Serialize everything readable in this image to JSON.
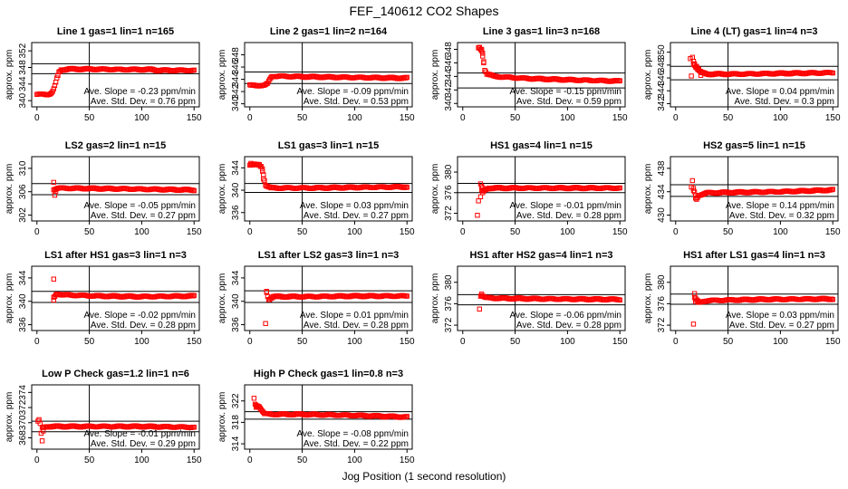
{
  "title": "FEF_140612  CO2 Shapes",
  "xlabel": "Jog Position (1 second resolution)",
  "point_color": "#ff0000",
  "chart_data": [
    {
      "type": "scatter",
      "title": "Line 1 gas=1 lin=1 n=165",
      "ylabel": "approx. ppm",
      "xlim": [
        -5,
        155
      ],
      "ylim": [
        338.5,
        354
      ],
      "yticks": [
        340,
        344,
        348,
        352
      ],
      "xticks": [
        0,
        50,
        100,
        150
      ],
      "hlines": [
        348.9,
        346.5
      ],
      "vline": 50,
      "slope": "Ave. Slope = -0.23 ppm/min",
      "stddev": "Ave. Std. Dev. = 0.76 ppm",
      "segments": [
        [
          0,
          341.5
        ],
        [
          10,
          341.5
        ],
        [
          13,
          341.7
        ],
        [
          15,
          342.2
        ],
        [
          17,
          343.5
        ],
        [
          19,
          345.3
        ],
        [
          21,
          346.8
        ],
        [
          23,
          347.4
        ],
        [
          30,
          347.6
        ],
        [
          50,
          347.6
        ],
        [
          80,
          347.5
        ],
        [
          110,
          347.5
        ],
        [
          115,
          347.3
        ],
        [
          150,
          347.3
        ]
      ]
    },
    {
      "type": "scatter",
      "title": "Line 2 gas=1 lin=2 n=164",
      "ylabel": "approx. ppm",
      "xlim": [
        -5,
        155
      ],
      "ylim": [
        339.5,
        350
      ],
      "yticks": [
        340,
        342,
        344,
        346,
        348
      ],
      "xticks": [
        0,
        50,
        100,
        150
      ],
      "hlines": [
        345.2,
        343.3
      ],
      "vline": 50,
      "slope": "Ave. Slope = -0.09 ppm/min",
      "stddev": "Ave. Std. Dev. = 0.53 ppm",
      "segments": [
        [
          0,
          343.0
        ],
        [
          14,
          343.0
        ],
        [
          17,
          343.3
        ],
        [
          19,
          344.0
        ],
        [
          21,
          344.5
        ],
        [
          30,
          344.5
        ],
        [
          60,
          344.4
        ],
        [
          100,
          344.3
        ],
        [
          150,
          344.2
        ]
      ]
    },
    {
      "type": "scatter",
      "title": "Line 3 gas=1 lin=3 n=168",
      "ylabel": "approx. ppm",
      "xlim": [
        -5,
        155
      ],
      "ylim": [
        339.5,
        349
      ],
      "yticks": [
        340,
        342,
        344,
        346,
        348
      ],
      "xticks": [
        0,
        50,
        100,
        150
      ],
      "hlines": [
        344.5,
        342.3
      ],
      "vline": 50,
      "slope": "Ave. Slope = -0.15 ppm/min",
      "stddev": "Ave. Std. Dev. = 0.59 ppm",
      "segments": [
        [
          15,
          348.2
        ],
        [
          17,
          348.0
        ],
        [
          19,
          347.5
        ],
        [
          20,
          346.2
        ],
        [
          21,
          345.0
        ],
        [
          23,
          344.4
        ],
        [
          30,
          344.0
        ],
        [
          60,
          343.7
        ],
        [
          100,
          343.5
        ],
        [
          150,
          343.3
        ]
      ],
      "extra": [
        [
          16,
          348.3
        ],
        [
          18,
          348.0
        ],
        [
          19,
          347.0
        ],
        [
          20,
          346.0
        ]
      ]
    },
    {
      "type": "scatter",
      "title": "Line 4 (LT) gas=1 lin=4 n=3",
      "ylabel": "approx. ppm",
      "xlim": [
        -5,
        155
      ],
      "ylim": [
        341.5,
        351.5
      ],
      "yticks": [
        342,
        344,
        346,
        348,
        350
      ],
      "xticks": [
        0,
        50,
        100,
        150
      ],
      "hlines": [
        347.8,
        345.7
      ],
      "vline": 50,
      "slope": "Ave. Slope = 0.04 ppm/min",
      "stddev": "Ave. Std. Dev. = 0.3 ppm",
      "segments": [
        [
          17,
          348.2
        ],
        [
          19,
          347.8
        ],
        [
          22,
          347.2
        ],
        [
          25,
          346.8
        ],
        [
          30,
          346.6
        ],
        [
          60,
          346.6
        ],
        [
          100,
          346.7
        ],
        [
          150,
          346.8
        ]
      ],
      "extra": [
        [
          14,
          349.0
        ],
        [
          15,
          346.3
        ],
        [
          16,
          349.2
        ],
        [
          17,
          348.6
        ],
        [
          18,
          348.2
        ],
        [
          20,
          347.8
        ],
        [
          22,
          347.4
        ],
        [
          24,
          346.4
        ]
      ]
    },
    {
      "type": "scatter",
      "title": "LS2 gas=2 lin=1 n=15",
      "ylabel": "approx. ppm",
      "xlim": [
        -5,
        155
      ],
      "ylim": [
        301,
        312
      ],
      "yticks": [
        302,
        306,
        310
      ],
      "xticks": [
        0,
        50,
        100,
        150
      ],
      "hlines": [
        307.4,
        305.5
      ],
      "vline": 50,
      "slope": "Ave. Slope = -0.05 ppm/min",
      "stddev": "Ave. Std. Dev. = 0.27 ppm",
      "segments": [
        [
          16,
          306.4
        ],
        [
          20,
          306.6
        ],
        [
          30,
          306.6
        ],
        [
          80,
          306.5
        ],
        [
          150,
          306.3
        ]
      ],
      "extra": [
        [
          16,
          307.6
        ],
        [
          17,
          305.4
        ],
        [
          18,
          306.1
        ]
      ]
    },
    {
      "type": "scatter",
      "title": "LS1 gas=3 lin=1 n=15",
      "ylabel": "approx. ppm",
      "xlim": [
        -5,
        155
      ],
      "ylim": [
        334.5,
        346
      ],
      "yticks": [
        336,
        340,
        344
      ],
      "xticks": [
        0,
        50,
        100,
        150
      ],
      "hlines": [
        341.2,
        339.6
      ],
      "vline": 50,
      "slope": "Ave. Slope = 0.03 ppm/min",
      "stddev": "Ave. Std. Dev. = 0.27 ppm",
      "segments": [
        [
          0,
          344.6
        ],
        [
          8,
          344.5
        ],
        [
          11,
          344.2
        ],
        [
          13,
          342.8
        ],
        [
          15,
          340.9
        ],
        [
          20,
          340.4
        ],
        [
          60,
          340.4
        ],
        [
          100,
          340.5
        ],
        [
          150,
          340.6
        ]
      ],
      "extra": [
        [
          1,
          344.8
        ],
        [
          4,
          344.7
        ],
        [
          9,
          344.6
        ],
        [
          12,
          343.8
        ],
        [
          13,
          342.0
        ]
      ]
    },
    {
      "type": "scatter",
      "title": "HS1 gas=4 lin=1 n=15",
      "ylabel": "approx. ppm",
      "xlim": [
        -5,
        155
      ],
      "ylim": [
        370.5,
        383
      ],
      "yticks": [
        372,
        376,
        380
      ],
      "xticks": [
        0,
        50,
        100,
        150
      ],
      "hlines": [
        377.8,
        376.0
      ],
      "vline": 50,
      "slope": "Ave. Slope = -0.01 ppm/min",
      "stddev": "Ave. Std. Dev. = 0.28 ppm",
      "segments": [
        [
          17,
          377.6
        ],
        [
          20,
          376.4
        ],
        [
          25,
          376.9
        ],
        [
          60,
          376.9
        ],
        [
          100,
          376.9
        ],
        [
          150,
          376.9
        ]
      ],
      "extra": [
        [
          14,
          371.6
        ],
        [
          15,
          374.4
        ],
        [
          17,
          375.2
        ],
        [
          18,
          376.5
        ],
        [
          19,
          376.0
        ],
        [
          20,
          376.3
        ]
      ]
    },
    {
      "type": "scatter",
      "title": "HS2 gas=5 lin=1 n=15",
      "ylabel": "approx. ppm",
      "xlim": [
        -5,
        155
      ],
      "ylim": [
        429,
        440
      ],
      "yticks": [
        430,
        434,
        438
      ],
      "xticks": [
        0,
        50,
        100,
        150
      ],
      "hlines": [
        435.2,
        433.2
      ],
      "vline": 50,
      "slope": "Ave. Slope = 0.14 ppm/min",
      "stddev": "Ave. Std. Dev. = 0.32 ppm",
      "segments": [
        [
          17,
          434.5
        ],
        [
          20,
          432.7
        ],
        [
          22,
          433.4
        ],
        [
          30,
          433.8
        ],
        [
          60,
          433.9
        ],
        [
          100,
          434.0
        ],
        [
          150,
          434.3
        ]
      ],
      "extra": [
        [
          15,
          434.8
        ],
        [
          16,
          435.9
        ],
        [
          17,
          434.2
        ],
        [
          19,
          432.9
        ]
      ]
    },
    {
      "type": "scatter",
      "title": "LS1 after HS1 gas=3 lin=1 n=3",
      "ylabel": "approx. ppm",
      "xlim": [
        -5,
        155
      ],
      "ylim": [
        335,
        346
      ],
      "yticks": [
        336,
        340,
        344
      ],
      "xticks": [
        0,
        50,
        100,
        150
      ],
      "hlines": [
        341.7,
        339.8
      ],
      "vline": 50,
      "slope": "Ave. Slope = -0.02 ppm/min",
      "stddev": "Ave. Std. Dev. = 0.28 ppm",
      "segments": [
        [
          16,
          340.6
        ],
        [
          19,
          341.3
        ],
        [
          25,
          341.1
        ],
        [
          60,
          340.9
        ],
        [
          100,
          340.8
        ],
        [
          150,
          340.9
        ]
      ],
      "extra": [
        [
          16,
          343.8
        ],
        [
          16,
          340.2
        ]
      ]
    },
    {
      "type": "scatter",
      "title": "LS1 after LS2 gas=3 lin=1 n=3",
      "ylabel": "approx. ppm",
      "xlim": [
        -5,
        155
      ],
      "ylim": [
        335,
        346
      ],
      "yticks": [
        336,
        340,
        344
      ],
      "xticks": [
        0,
        50,
        100,
        150
      ],
      "hlines": [
        341.8,
        339.8
      ],
      "vline": 50,
      "slope": "Ave. Slope = 0.01 ppm/min",
      "stddev": "Ave. Std. Dev. = 0.28 ppm",
      "segments": [
        [
          16,
          341.5
        ],
        [
          18,
          340.3
        ],
        [
          22,
          340.8
        ],
        [
          60,
          340.8
        ],
        [
          100,
          340.9
        ],
        [
          150,
          340.9
        ]
      ],
      "extra": [
        [
          15,
          336.2
        ],
        [
          16,
          341.7
        ]
      ]
    },
    {
      "type": "scatter",
      "title": "HS1 after HS2 gas=4 lin=1 n=3",
      "ylabel": "approx. ppm",
      "xlim": [
        -5,
        155
      ],
      "ylim": [
        371,
        383
      ],
      "yticks": [
        372,
        376,
        380
      ],
      "xticks": [
        0,
        50,
        100,
        150
      ],
      "hlines": [
        377.7,
        375.8
      ],
      "vline": 50,
      "slope": "Ave. Slope = -0.06 ppm/min",
      "stddev": "Ave. Std. Dev. = 0.28 ppm",
      "segments": [
        [
          18,
          377.6
        ],
        [
          22,
          377.1
        ],
        [
          40,
          377.0
        ],
        [
          80,
          376.9
        ],
        [
          150,
          376.8
        ]
      ],
      "extra": [
        [
          16,
          375.0
        ],
        [
          17,
          377.4
        ],
        [
          18,
          377.8
        ]
      ]
    },
    {
      "type": "scatter",
      "title": "HS1 after LS1 gas=4 lin=1 n=3",
      "ylabel": "approx. ppm",
      "xlim": [
        -5,
        155
      ],
      "ylim": [
        371,
        383
      ],
      "yticks": [
        372,
        376,
        380
      ],
      "xticks": [
        0,
        50,
        100,
        150
      ],
      "hlines": [
        377.8,
        375.9
      ],
      "vline": 50,
      "slope": "Ave. Slope = 0.03 ppm/min",
      "stddev": "Ave. Std. Dev. = 0.27 ppm",
      "segments": [
        [
          18,
          377.2
        ],
        [
          22,
          376.2
        ],
        [
          30,
          376.6
        ],
        [
          80,
          376.8
        ],
        [
          150,
          376.9
        ]
      ],
      "extra": [
        [
          17,
          372.2
        ],
        [
          18,
          377.9
        ],
        [
          19,
          376.4
        ]
      ]
    },
    {
      "type": "scatter",
      "title": "Low P Check gas=1.2 lin=1 n=6",
      "ylabel": "approx. ppm",
      "xlim": [
        -5,
        155
      ],
      "ylim": [
        366.5,
        375
      ],
      "yticks": [
        368,
        370,
        372,
        374
      ],
      "xticks": [
        0,
        50,
        100,
        150
      ],
      "hlines": [
        370.2,
        368.8
      ],
      "vline": 50,
      "slope": "Ave. Slope = -0.01 ppm/min",
      "stddev": "Ave. Std. Dev. = 0.29 ppm",
      "segments": [
        [
          5,
          369.3
        ],
        [
          10,
          369.5
        ],
        [
          50,
          369.5
        ],
        [
          100,
          369.5
        ],
        [
          150,
          369.4
        ]
      ],
      "extra": [
        [
          1,
          370.2
        ],
        [
          2,
          370.4
        ],
        [
          3,
          369.9
        ],
        [
          4,
          368.6
        ],
        [
          5,
          367.6
        ],
        [
          6,
          368.9
        ]
      ]
    },
    {
      "type": "scatter",
      "title": "High P Check gas=1 lin=0.8 n=3",
      "ylabel": "approx. ppm",
      "xlim": [
        -5,
        155
      ],
      "ylim": [
        313,
        325
      ],
      "yticks": [
        314,
        318,
        322
      ],
      "xticks": [
        0,
        50,
        100,
        150
      ],
      "hlines": [
        320.0,
        318.6
      ],
      "vline": 50,
      "slope": "Ave. Slope = -0.08 ppm/min",
      "stddev": "Ave. Std. Dev. = 0.22 ppm",
      "segments": [
        [
          6,
          321.2
        ],
        [
          9,
          321.0
        ],
        [
          11,
          320.4
        ],
        [
          14,
          319.6
        ],
        [
          20,
          319.5
        ],
        [
          50,
          319.5
        ],
        [
          100,
          319.3
        ],
        [
          150,
          319.0
        ]
      ],
      "extra": [
        [
          4,
          322.5
        ],
        [
          5,
          321.4
        ],
        [
          6,
          320.8
        ],
        [
          7,
          321.0
        ],
        [
          8,
          320.9
        ],
        [
          10,
          320.6
        ]
      ]
    }
  ]
}
